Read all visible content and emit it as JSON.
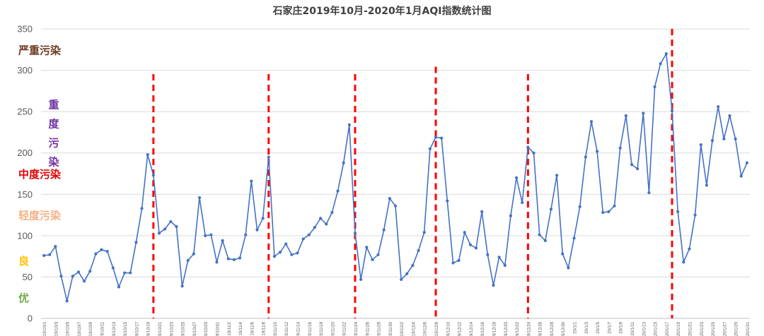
{
  "chart_data": {
    "type": "line",
    "title": "石家庄2019年10月-2020年1月AQI指数统计图",
    "ylim": [
      0,
      350
    ],
    "yticks": [
      0,
      50,
      100,
      150,
      200,
      250,
      300,
      350
    ],
    "grid": true,
    "x_tick_labels": [
      "19/10/1",
      "19/10/3",
      "19/10/5",
      "19/10/7",
      "19/10/9",
      "19/10/11",
      "19/10/13",
      "19/10/15",
      "19/10/17",
      "19/10/19",
      "19/10/21",
      "19/10/23",
      "19/10/25",
      "19/10/27",
      "19/10/29",
      "19/10/31",
      "19/11/2",
      "19/11/4",
      "19/11/6",
      "19/11/8",
      "19/11/10",
      "19/11/12",
      "19/11/14",
      "19/11/16",
      "19/11/18",
      "19/11/20",
      "19/11/22",
      "19/11/24",
      "19/11/26",
      "19/11/28",
      "19/11/30",
      "19/12/2",
      "19/12/4",
      "19/12/6",
      "19/12/8",
      "19/12/10",
      "19/12/12",
      "19/12/14",
      "19/12/16",
      "19/12/18",
      "19/12/20",
      "19/12/22",
      "19/12/24",
      "19/12/26",
      "19/12/28",
      "19/12/30",
      "20/1/1",
      "20/1/3",
      "20/1/5",
      "20/1/7",
      "20/1/9",
      "20/1/11",
      "20/1/13",
      "20/1/15",
      "20/1/17",
      "20/1/19",
      "20/1/21",
      "20/1/23",
      "20/1/25",
      "20/1/27",
      "20/1/29",
      "20/1/31"
    ],
    "series": [
      {
        "name": "AQI",
        "color": "#4472C4",
        "values": [
          76,
          77,
          87,
          51,
          21,
          51,
          56,
          45,
          57,
          78,
          83,
          81,
          61,
          38,
          55,
          55,
          92,
          133,
          198,
          173,
          103,
          108,
          117,
          111,
          39,
          70,
          78,
          146,
          100,
          101,
          68,
          94,
          72,
          71,
          73,
          101,
          166,
          107,
          121,
          195,
          75,
          80,
          90,
          77,
          79,
          96,
          101,
          110,
          121,
          114,
          128,
          154,
          188,
          234,
          103,
          47,
          86,
          71,
          77,
          107,
          145,
          136,
          47,
          54,
          64,
          82,
          104,
          205,
          219,
          218,
          142,
          67,
          70,
          104,
          89,
          85,
          129,
          77,
          40,
          74,
          64,
          124,
          170,
          140,
          207,
          200,
          101,
          94,
          132,
          173,
          78,
          61,
          97,
          135,
          195,
          238,
          202,
          128,
          129,
          136,
          206,
          245,
          186,
          181,
          248,
          152,
          280,
          308,
          320,
          251,
          129,
          68,
          84,
          125,
          210,
          161,
          215,
          256,
          217,
          245,
          217,
          172,
          188
        ]
      }
    ],
    "vertical_markers": {
      "color": "#FF0000",
      "x_index": [
        19,
        39,
        54,
        68,
        84,
        109
      ]
    },
    "pollution_bands": [
      {
        "label": "严重污染",
        "color": "#6B3A1F",
        "level": 325
      },
      {
        "label": "重度污染",
        "color": "#7030A0",
        "level": 225
      },
      {
        "label": "中度污染",
        "color": "#E00000",
        "level": 175
      },
      {
        "label": "轻度污染",
        "color": "#F4B183",
        "level": 125
      },
      {
        "label": "良",
        "color": "#FFC000",
        "level": 70
      },
      {
        "label": "优",
        "color": "#70AD47",
        "level": 25
      }
    ]
  }
}
